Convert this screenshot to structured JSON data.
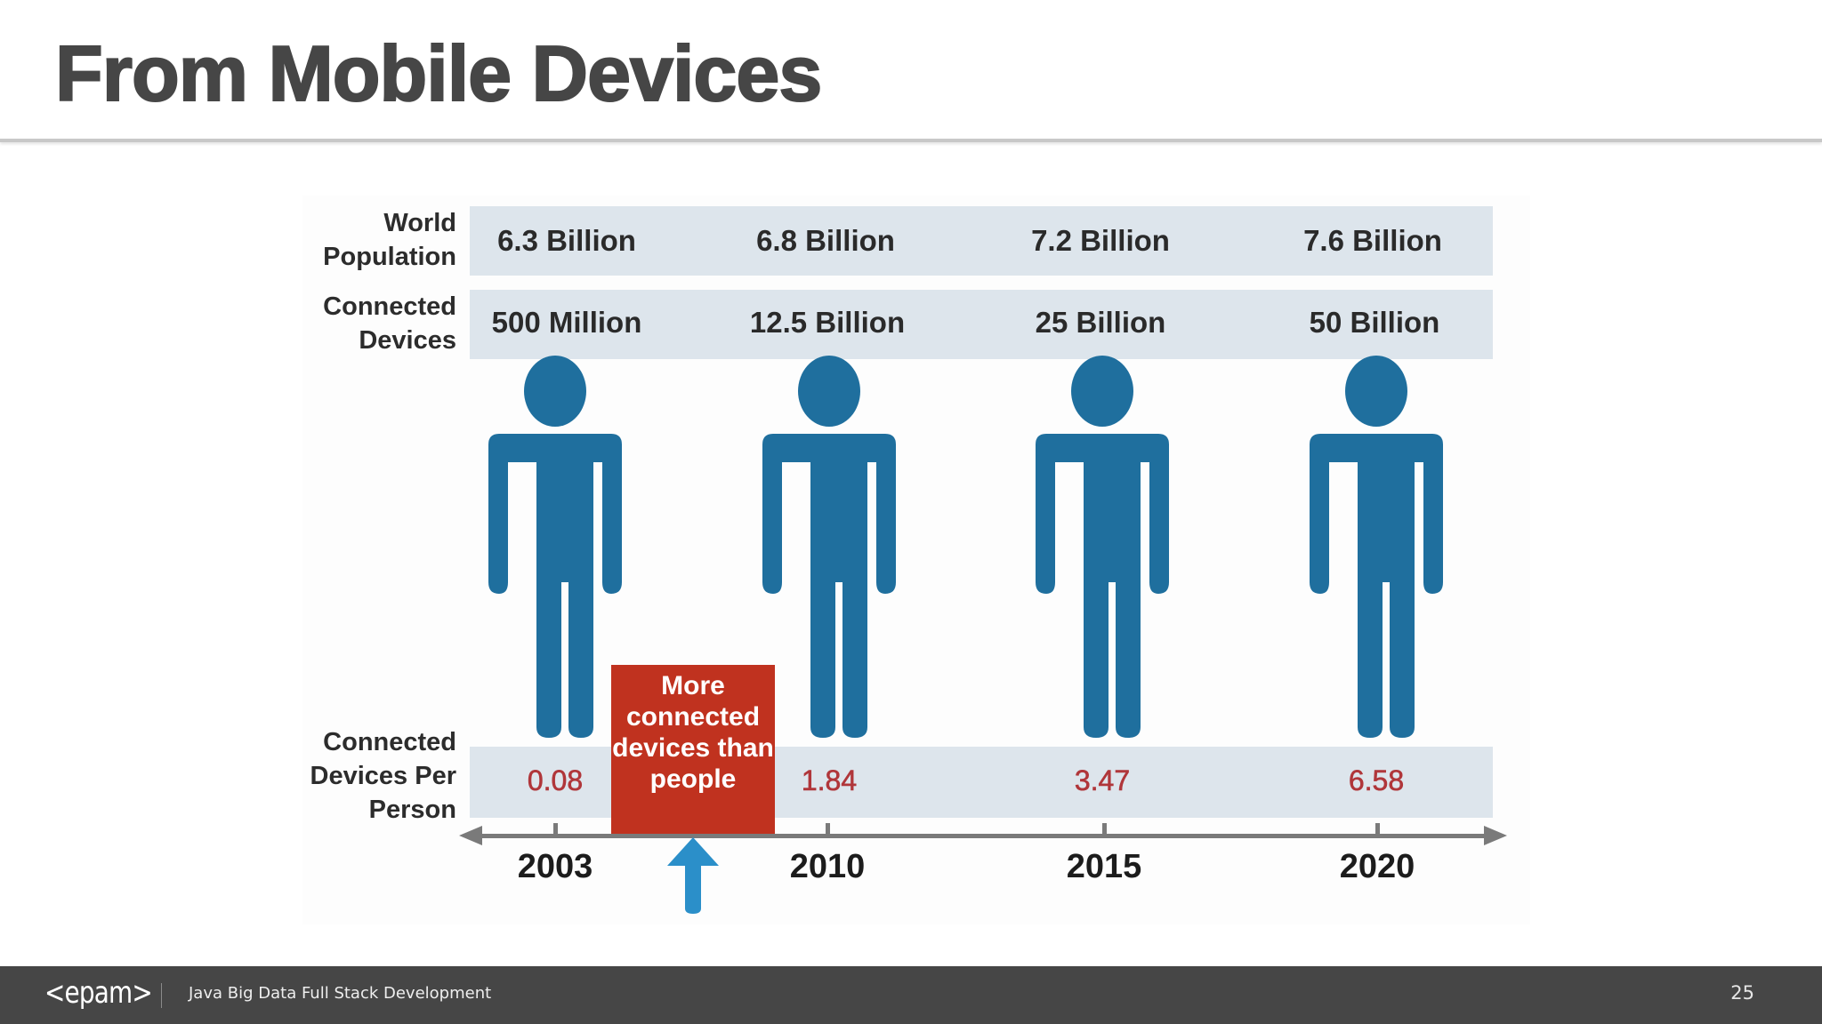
{
  "slide": {
    "title": "From Mobile Devices",
    "page_number": "25"
  },
  "footer": {
    "logo_text": "<epam>",
    "course_title": "Java Big Data Full Stack Development"
  },
  "infographic": {
    "row_labels": {
      "population": "World Population",
      "devices": "Connected Devices",
      "ratio": "Connected Devices Per Person"
    },
    "columns": [
      {
        "year": "2003",
        "population": "6.3 Billion",
        "devices": "500 Million",
        "ratio": "0.08"
      },
      {
        "year": "2010",
        "population": "6.8 Billion",
        "devices": "12.5 Billion",
        "ratio": "1.84"
      },
      {
        "year": "2015",
        "population": "7.2 Billion",
        "devices": "25 Billion",
        "ratio": "3.47"
      },
      {
        "year": "2020",
        "population": "7.6 Billion",
        "devices": "50 Billion",
        "ratio": "6.58"
      }
    ],
    "callout": "More connected devices than people",
    "colors": {
      "person": "#1f6f9e",
      "band": "#dde5ec",
      "callout": "#c0321f",
      "ratio_text": "#b0363a",
      "arrow": "#2b8fc9"
    }
  }
}
